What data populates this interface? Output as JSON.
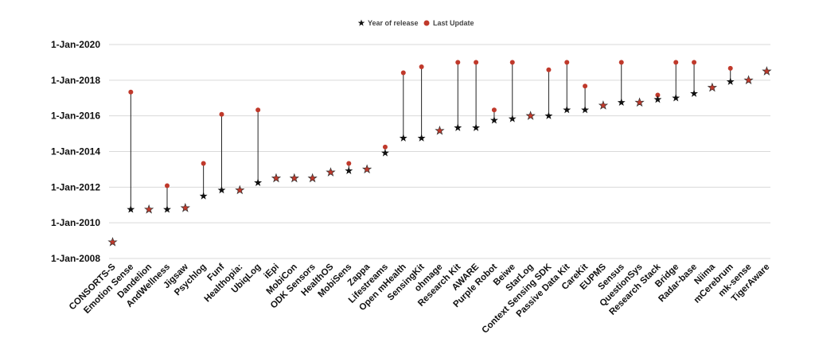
{
  "chart_data": {
    "type": "scatter",
    "title": "",
    "xlabel": "",
    "ylabel": "",
    "y_axis_type": "date",
    "ylim": [
      "2008-01-01",
      "2020-01-01"
    ],
    "yticks": [
      "1-Jan-2008",
      "1-Jan-2010",
      "1-Jan-2012",
      "1-Jan-2014",
      "1-Jan-2016",
      "1-Jan-2018",
      "1-Jan-2020"
    ],
    "grid": true,
    "legend_position": "top-center",
    "categories": [
      "CONSORTS-S",
      "Emotion Sense",
      "Dandelion",
      "AndWellness",
      "Jigsaw",
      "Psychlog",
      "Funf",
      "Healthopia:",
      "UbiqLog",
      "iEpi",
      "MobiCon",
      "ODK Sensors",
      "HealthOS",
      "MobiSens",
      "Zappa",
      "Lifestreams",
      "Open mHealth",
      "SensingKit",
      "ohmage",
      "Research Kit",
      "AWARE",
      "Purple Robot",
      "Beiwe",
      "StarLog",
      "Context Sensing SDK",
      "Passive Data Kit",
      "CareKit",
      "EUPMS",
      "Sensus",
      "QuestionSys",
      "Research Stack",
      "Bridge",
      "Radar-base",
      "Niima",
      "mCerebrum",
      "mk-sense",
      "TigerAware"
    ],
    "series": [
      {
        "name": "Year of release",
        "marker": "star",
        "color": "#111111",
        "values": [
          "2008-12-01",
          "2010-10-01",
          "2010-10-01",
          "2010-10-01",
          "2010-11-01",
          "2011-07-01",
          "2011-11-01",
          "2011-11-01",
          "2012-04-01",
          "2012-07-01",
          "2012-07-01",
          "2012-07-01",
          "2012-11-01",
          "2012-12-01",
          "2013-01-01",
          "2013-12-01",
          "2014-10-01",
          "2014-10-01",
          "2015-03-01",
          "2015-05-01",
          "2015-05-01",
          "2015-10-01",
          "2015-11-01",
          "2016-01-01",
          "2016-01-01",
          "2016-05-01",
          "2016-05-01",
          "2016-08-01",
          "2016-10-01",
          "2016-10-01",
          "2016-12-01",
          "2017-01-01",
          "2017-04-01",
          "2017-08-01",
          "2017-12-01",
          "2018-01-01",
          "2018-07-01"
        ]
      },
      {
        "name": "Last Update",
        "marker": "dot",
        "color": "#c0392b",
        "values": [
          "2008-12-01",
          "2017-05-01",
          "2010-10-01",
          "2012-02-01",
          "2010-11-01",
          "2013-05-01",
          "2016-02-01",
          "2011-11-01",
          "2016-05-01",
          "2012-07-01",
          "2012-07-01",
          "2012-07-01",
          "2012-11-01",
          "2013-05-01",
          "2013-01-01",
          "2014-04-01",
          "2018-06-01",
          "2018-10-01",
          "2015-03-01",
          "2019-01-01",
          "2019-01-01",
          "2016-05-01",
          "2019-01-01",
          "2016-01-01",
          "2018-08-01",
          "2019-01-01",
          "2017-09-01",
          "2016-08-01",
          "2019-01-01",
          "2016-10-01",
          "2017-03-01",
          "2019-01-01",
          "2019-01-01",
          "2017-08-01",
          "2018-09-01",
          "2018-01-01",
          "2018-07-01"
        ]
      }
    ]
  }
}
